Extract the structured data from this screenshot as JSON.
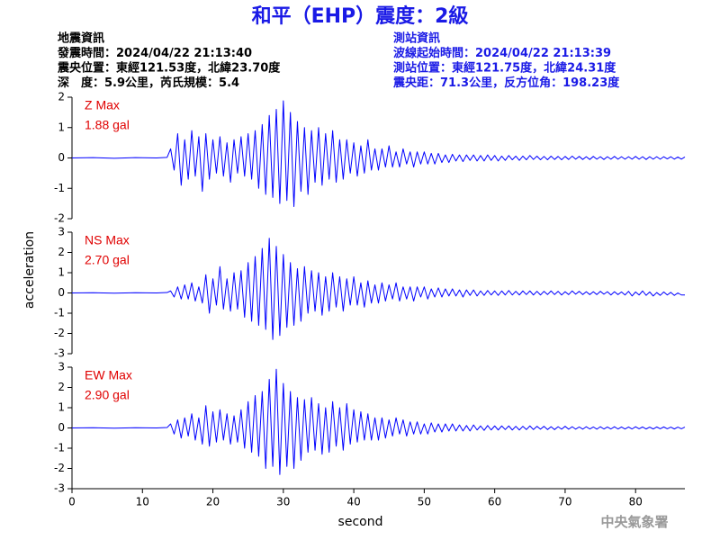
{
  "title": "和平（EHP）震度：2級",
  "event_info": [
    "地震資訊",
    "發震時間：2024/04/22 21:13:40",
    "震央位置：東經121.53度，北緯23.70度",
    "深　度：5.9公里，芮氏規模：5.4"
  ],
  "station_info": [
    "測站資訊",
    "波線起始時間：2024/04/22 21:13:39",
    "測站位置：東經121.75度，北緯24.31度",
    "震央距：71.3公里，反方位角：198.23度"
  ],
  "ylabel": "acceleration",
  "footer": "中央氣象署",
  "chart_data": [
    {
      "type": "line",
      "label": "Z Max",
      "max_label": "1.88 gal",
      "color": "#0000ff",
      "xlim": [
        0,
        87
      ],
      "ylim": [
        -2,
        2
      ],
      "yticks": [
        -2,
        -1,
        0,
        1,
        2
      ],
      "x": [
        0,
        3,
        6,
        9,
        12,
        13.5,
        14,
        14.5,
        15,
        15.5,
        16,
        16.5,
        17,
        17.5,
        18,
        18.5,
        19,
        19.5,
        20,
        20.5,
        21,
        21.5,
        22,
        22.5,
        23,
        23.5,
        24,
        24.5,
        25,
        25.5,
        26,
        26.5,
        27,
        27.5,
        28,
        28.5,
        29,
        29.5,
        30,
        30.5,
        31,
        31.5,
        32,
        32.5,
        33,
        33.5,
        34,
        34.5,
        35,
        35.5,
        36,
        36.5,
        37,
        37.5,
        38,
        38.5,
        39,
        39.5,
        40,
        40.5,
        41,
        41.5,
        42,
        42.5,
        43,
        43.5,
        44,
        44.5,
        45,
        45.5,
        46,
        46.5,
        47,
        47.5,
        48,
        48.5,
        49,
        49.5,
        50,
        50.5,
        51,
        51.5,
        52,
        52.5,
        53,
        53.5,
        54,
        54.5,
        55,
        55.5,
        56,
        56.5,
        57,
        57.5,
        58,
        58.5,
        59,
        59.5,
        60,
        60.5,
        61,
        61.5,
        62,
        62.5,
        63,
        63.5,
        64,
        64.5,
        65,
        65.5,
        66,
        66.5,
        67,
        67.5,
        68,
        68.5,
        69,
        69.5,
        70,
        70.5,
        71,
        71.5,
        72,
        72.5,
        73,
        73.5,
        74,
        74.5,
        75,
        75.5,
        76,
        76.5,
        77,
        77.5,
        78,
        78.5,
        79,
        79.5,
        80,
        80.5,
        81,
        81.5,
        82,
        82.5,
        83,
        83.5,
        84,
        84.5,
        85,
        85.5,
        86,
        86.5,
        87
      ],
      "values": [
        0,
        0.01,
        -0.01,
        0.01,
        0,
        0.02,
        0.3,
        -0.4,
        0.8,
        -0.9,
        0.6,
        -0.7,
        0.9,
        -0.6,
        0.7,
        -1.1,
        0.8,
        -0.7,
        0.6,
        -0.5,
        0.7,
        -0.6,
        0.5,
        -0.8,
        0.6,
        -0.5,
        0.7,
        -0.6,
        0.8,
        -0.7,
        0.9,
        -1.0,
        1.1,
        -1.2,
        1.4,
        -1.3,
        1.6,
        -1.5,
        1.88,
        -1.4,
        1.5,
        -1.6,
        1.2,
        -1.1,
        1.0,
        -1.2,
        0.9,
        -0.8,
        1.0,
        -0.9,
        0.8,
        -0.7,
        0.9,
        -0.8,
        0.6,
        -0.7,
        0.6,
        -0.5,
        0.5,
        -0.6,
        0.4,
        -0.5,
        0.6,
        -0.4,
        0.3,
        -0.4,
        0.3,
        -0.3,
        0.4,
        -0.3,
        0.2,
        -0.3,
        0.3,
        -0.2,
        0.2,
        -0.3,
        0.2,
        -0.2,
        0.2,
        -0.2,
        0.15,
        -0.2,
        0.15,
        -0.15,
        0.1,
        -0.15,
        0.12,
        -0.1,
        0.1,
        -0.12,
        0.1,
        -0.08,
        0.1,
        -0.1,
        0.08,
        -0.1,
        0.1,
        -0.08,
        0.08,
        -0.1,
        0.06,
        -0.08,
        0.08,
        -0.06,
        0.06,
        -0.08,
        0.06,
        -0.06,
        0.08,
        -0.05,
        0.06,
        -0.06,
        0.05,
        -0.06,
        0.06,
        -0.05,
        0.05,
        -0.06,
        0.05,
        -0.05,
        0.06,
        -0.04,
        0.05,
        -0.05,
        0.04,
        -0.05,
        0.05,
        -0.04,
        0.04,
        -0.05,
        0.04,
        -0.04,
        0.05,
        -0.04,
        0.04,
        -0.04,
        0.04,
        -0.04,
        0.05,
        -0.04,
        0.04,
        -0.05,
        0.04,
        -0.04,
        0.04,
        -0.04,
        0.04,
        -0.03,
        0.04,
        -0.04,
        0.03,
        -0.04,
        0.03
      ]
    },
    {
      "type": "line",
      "label": "NS Max",
      "max_label": "2.70 gal",
      "color": "#0000ff",
      "xlim": [
        0,
        87
      ],
      "ylim": [
        -3,
        3
      ],
      "yticks": [
        -3,
        -2,
        -1,
        0,
        1,
        2,
        3
      ],
      "x": [
        0,
        3,
        6,
        9,
        12,
        13.5,
        14,
        14.5,
        15,
        15.5,
        16,
        16.5,
        17,
        17.5,
        18,
        18.5,
        19,
        19.5,
        20,
        20.5,
        21,
        21.5,
        22,
        22.5,
        23,
        23.5,
        24,
        24.5,
        25,
        25.5,
        26,
        26.5,
        27,
        27.5,
        28,
        28.5,
        29,
        29.5,
        30,
        30.5,
        31,
        31.5,
        32,
        32.5,
        33,
        33.5,
        34,
        34.5,
        35,
        35.5,
        36,
        36.5,
        37,
        37.5,
        38,
        38.5,
        39,
        39.5,
        40,
        40.5,
        41,
        41.5,
        42,
        42.5,
        43,
        43.5,
        44,
        44.5,
        45,
        45.5,
        46,
        46.5,
        47,
        47.5,
        48,
        48.5,
        49,
        49.5,
        50,
        50.5,
        51,
        51.5,
        52,
        52.5,
        53,
        53.5,
        54,
        54.5,
        55,
        55.5,
        56,
        56.5,
        57,
        57.5,
        58,
        58.5,
        59,
        59.5,
        60,
        60.5,
        61,
        61.5,
        62,
        62.5,
        63,
        63.5,
        64,
        64.5,
        65,
        65.5,
        66,
        66.5,
        67,
        67.5,
        68,
        68.5,
        69,
        69.5,
        70,
        70.5,
        71,
        71.5,
        72,
        72.5,
        73,
        73.5,
        74,
        74.5,
        75,
        75.5,
        76,
        76.5,
        77,
        77.5,
        78,
        78.5,
        79,
        79.5,
        80,
        80.5,
        81,
        81.5,
        82,
        82.5,
        83,
        83.5,
        84,
        84.5,
        85,
        85.5,
        86,
        86.5,
        87
      ],
      "values": [
        0,
        0.01,
        -0.01,
        0.01,
        0,
        0.02,
        0.1,
        -0.2,
        0.3,
        -0.3,
        0.4,
        -0.3,
        0.5,
        -0.4,
        0.3,
        -0.5,
        0.9,
        -1.0,
        0.7,
        -0.6,
        1.3,
        -0.8,
        0.7,
        -0.9,
        1.0,
        -0.8,
        1.1,
        -1.2,
        1.5,
        -1.4,
        1.8,
        -1.6,
        2.2,
        -1.8,
        2.7,
        -2.3,
        2.3,
        -2.1,
        1.9,
        -1.7,
        1.5,
        -1.6,
        1.2,
        -1.4,
        1.3,
        -1.0,
        1.1,
        -0.9,
        1.0,
        -1.1,
        0.8,
        -0.9,
        1.0,
        -0.7,
        0.8,
        -0.9,
        0.7,
        -0.6,
        0.8,
        -0.6,
        0.5,
        -0.7,
        0.6,
        -0.5,
        0.4,
        -0.5,
        0.5,
        -0.4,
        0.4,
        -0.3,
        0.5,
        -0.4,
        0.3,
        -0.3,
        0.3,
        -0.4,
        0.3,
        -0.2,
        0.3,
        -0.3,
        0.2,
        -0.2,
        0.25,
        -0.2,
        0.2,
        -0.15,
        0.2,
        -0.15,
        0.15,
        -0.2,
        0.15,
        -0.12,
        0.15,
        -0.15,
        0.1,
        -0.12,
        0.12,
        -0.1,
        0.1,
        -0.12,
        0.1,
        -0.1,
        0.12,
        -0.1,
        0.08,
        -0.1,
        0.1,
        -0.08,
        0.1,
        -0.1,
        0.08,
        -0.1,
        0.08,
        -0.08,
        0.1,
        -0.08,
        0.08,
        -0.1,
        0.06,
        -0.08,
        0.1,
        -0.06,
        0.08,
        -0.08,
        0.06,
        -0.08,
        0.06,
        -0.08,
        0.08,
        -0.06,
        0.06,
        -0.1,
        0.06,
        -0.08,
        0.05,
        -0.1,
        0.08,
        -0.15,
        0.05,
        -0.1,
        0.1,
        -0.12,
        0.05,
        -0.15,
        0.02,
        -0.12,
        0.05,
        -0.1,
        0.03,
        -0.12,
        0.0,
        -0.1,
        -0.1
      ]
    },
    {
      "type": "line",
      "label": "EW Max",
      "max_label": "2.90 gal",
      "color": "#0000ff",
      "xlim": [
        0,
        87
      ],
      "ylim": [
        -3,
        3
      ],
      "yticks": [
        -3,
        -2,
        -1,
        0,
        1,
        2,
        3
      ],
      "xticks": [
        0,
        10,
        20,
        30,
        40,
        50,
        60,
        70,
        80
      ],
      "xlabel": "second",
      "x": [
        0,
        3,
        6,
        9,
        12,
        13.5,
        14,
        14.5,
        15,
        15.5,
        16,
        16.5,
        17,
        17.5,
        18,
        18.5,
        19,
        19.5,
        20,
        20.5,
        21,
        21.5,
        22,
        22.5,
        23,
        23.5,
        24,
        24.5,
        25,
        25.5,
        26,
        26.5,
        27,
        27.5,
        28,
        28.5,
        29,
        29.5,
        30,
        30.5,
        31,
        31.5,
        32,
        32.5,
        33,
        33.5,
        34,
        34.5,
        35,
        35.5,
        36,
        36.5,
        37,
        37.5,
        38,
        38.5,
        39,
        39.5,
        40,
        40.5,
        41,
        41.5,
        42,
        42.5,
        43,
        43.5,
        44,
        44.5,
        45,
        45.5,
        46,
        46.5,
        47,
        47.5,
        48,
        48.5,
        49,
        49.5,
        50,
        50.5,
        51,
        51.5,
        52,
        52.5,
        53,
        53.5,
        54,
        54.5,
        55,
        55.5,
        56,
        56.5,
        57,
        57.5,
        58,
        58.5,
        59,
        59.5,
        60,
        60.5,
        61,
        61.5,
        62,
        62.5,
        63,
        63.5,
        64,
        64.5,
        65,
        65.5,
        66,
        66.5,
        67,
        67.5,
        68,
        68.5,
        69,
        69.5,
        70,
        70.5,
        71,
        71.5,
        72,
        72.5,
        73,
        73.5,
        74,
        74.5,
        75,
        75.5,
        76,
        76.5,
        77,
        77.5,
        78,
        78.5,
        79,
        79.5,
        80,
        80.5,
        81,
        81.5,
        82,
        82.5,
        83,
        83.5,
        84,
        84.5,
        85,
        85.5,
        86,
        86.5,
        87
      ],
      "values": [
        0,
        0.01,
        -0.01,
        0.01,
        0,
        0.02,
        0.2,
        -0.3,
        0.4,
        -0.5,
        0.5,
        -0.4,
        0.7,
        -0.6,
        0.5,
        -0.8,
        1.1,
        -0.9,
        0.8,
        -0.7,
        0.9,
        -0.6,
        0.7,
        -0.8,
        0.6,
        -0.7,
        0.9,
        -1.0,
        1.3,
        -1.2,
        1.6,
        -1.4,
        1.8,
        -2.0,
        2.4,
        -1.9,
        2.9,
        -2.3,
        2.2,
        -1.9,
        1.8,
        -2.0,
        1.5,
        -1.6,
        1.4,
        -1.2,
        1.5,
        -1.1,
        1.2,
        -1.3,
        1.0,
        -1.2,
        1.3,
        -0.9,
        1.0,
        -1.1,
        1.2,
        -0.8,
        0.9,
        -0.7,
        0.8,
        -0.6,
        0.7,
        -0.6,
        0.5,
        -0.6,
        0.5,
        -0.5,
        0.4,
        -0.4,
        0.5,
        -0.3,
        0.4,
        -0.4,
        0.3,
        -0.3,
        0.3,
        -0.3,
        0.2,
        -0.3,
        0.25,
        -0.2,
        0.2,
        -0.2,
        0.2,
        -0.15,
        0.2,
        -0.15,
        0.15,
        -0.15,
        0.12,
        -0.15,
        0.15,
        -0.1,
        0.1,
        -0.12,
        0.12,
        -0.1,
        0.1,
        -0.1,
        0.1,
        -0.08,
        0.1,
        -0.1,
        0.08,
        -0.1,
        0.08,
        -0.08,
        0.1,
        -0.08,
        0.08,
        -0.06,
        0.08,
        -0.08,
        0.06,
        -0.08,
        0.06,
        -0.06,
        0.08,
        -0.06,
        0.06,
        -0.06,
        0.05,
        -0.06,
        0.06,
        -0.05,
        0.05,
        -0.06,
        0.06,
        -0.05,
        0.05,
        -0.05,
        0.06,
        -0.05,
        0.05,
        -0.05,
        0.05,
        -0.05,
        0.06,
        -0.04,
        0.05,
        -0.05,
        0.04,
        -0.05,
        0.05,
        -0.04,
        0.05,
        -0.04,
        0.04,
        -0.05,
        0.04,
        -0.04,
        0.04
      ]
    }
  ]
}
